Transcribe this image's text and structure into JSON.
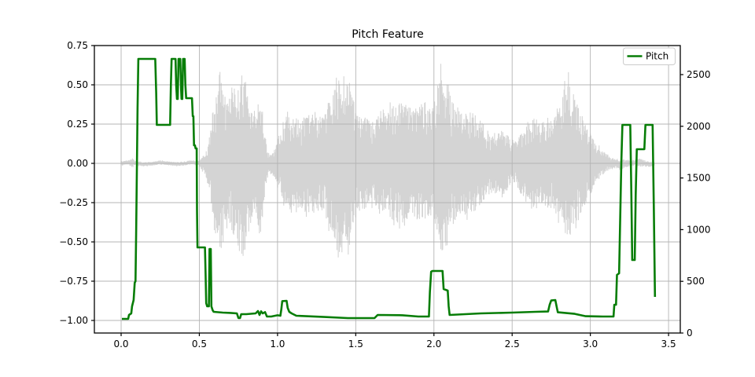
{
  "title": "Pitch Feature",
  "legend": {
    "label": "Pitch",
    "position": "upper right",
    "line_color": "#077d07"
  },
  "colors": {
    "background": "#ffffff",
    "pitch_line": "#077d07",
    "waveform": "#d4d4d4",
    "grid": "#b4b4b4",
    "axis_frame": "#000000",
    "legend_border": "#cccccc"
  },
  "axis_tick_labels": {
    "x": [
      "0.0",
      "0.5",
      "1.0",
      "1.5",
      "2.0",
      "2.5",
      "3.0",
      "3.5"
    ],
    "left": [
      "0.75",
      "0.50",
      "0.25",
      "0.00",
      "−0.25",
      "−0.50",
      "−0.75",
      "−1.00"
    ],
    "right": [
      "0",
      "500",
      "1000",
      "1500",
      "2000",
      "2500"
    ]
  },
  "chart_data": {
    "type": "line",
    "title": "Pitch Feature",
    "xlabel": "",
    "ylabel": "",
    "grid": true,
    "legend_position": "upper right",
    "xlim": [
      -0.171,
      3.575
    ],
    "ylim_left": [
      -1.08,
      0.75
    ],
    "ylim_right": [
      0,
      2781
    ],
    "xticks": [
      0.0,
      0.5,
      1.0,
      1.5,
      2.0,
      2.5,
      3.0,
      3.5
    ],
    "yticks_left": [
      0.75,
      0.5,
      0.25,
      0.0,
      -0.25,
      -0.5,
      -0.75,
      -1.0
    ],
    "yticks_right": [
      0,
      500,
      1000,
      1500,
      2000,
      2500
    ],
    "series": [
      {
        "name": "Pitch",
        "type": "line",
        "axis": "left",
        "color": "#077d07",
        "points": [
          [
            0.005,
            -0.99
          ],
          [
            0.045,
            -0.99
          ],
          [
            0.05,
            -0.965
          ],
          [
            0.065,
            -0.955
          ],
          [
            0.07,
            -0.91
          ],
          [
            0.08,
            -0.87
          ],
          [
            0.087,
            -0.76
          ],
          [
            0.092,
            -0.75
          ],
          [
            0.096,
            -0.45
          ],
          [
            0.1,
            -0.1
          ],
          [
            0.105,
            0.35
          ],
          [
            0.11,
            0.665
          ],
          [
            0.218,
            0.665
          ],
          [
            0.224,
            0.45
          ],
          [
            0.228,
            0.245
          ],
          [
            0.313,
            0.245
          ],
          [
            0.318,
            0.5
          ],
          [
            0.323,
            0.665
          ],
          [
            0.348,
            0.665
          ],
          [
            0.352,
            0.5
          ],
          [
            0.357,
            0.41
          ],
          [
            0.362,
            0.41
          ],
          [
            0.367,
            0.665
          ],
          [
            0.378,
            0.665
          ],
          [
            0.383,
            0.48
          ],
          [
            0.386,
            0.41
          ],
          [
            0.391,
            0.41
          ],
          [
            0.396,
            0.665
          ],
          [
            0.406,
            0.665
          ],
          [
            0.411,
            0.5
          ],
          [
            0.416,
            0.415
          ],
          [
            0.453,
            0.415
          ],
          [
            0.458,
            0.3
          ],
          [
            0.462,
            0.3
          ],
          [
            0.466,
            0.115
          ],
          [
            0.472,
            0.115
          ],
          [
            0.476,
            0.095
          ],
          [
            0.483,
            0.095
          ],
          [
            0.485,
            -0.3
          ],
          [
            0.488,
            -0.535
          ],
          [
            0.536,
            -0.535
          ],
          [
            0.54,
            -0.7
          ],
          [
            0.544,
            -0.89
          ],
          [
            0.55,
            -0.91
          ],
          [
            0.561,
            -0.91
          ],
          [
            0.565,
            -0.545
          ],
          [
            0.573,
            -0.545
          ],
          [
            0.577,
            -0.91
          ],
          [
            0.585,
            -0.935
          ],
          [
            0.592,
            -0.945
          ],
          [
            0.65,
            -0.95
          ],
          [
            0.7,
            -0.952
          ],
          [
            0.74,
            -0.955
          ],
          [
            0.75,
            -0.985
          ],
          [
            0.76,
            -0.985
          ],
          [
            0.768,
            -0.96
          ],
          [
            0.8,
            -0.96
          ],
          [
            0.86,
            -0.955
          ],
          [
            0.875,
            -0.94
          ],
          [
            0.885,
            -0.965
          ],
          [
            0.895,
            -0.942
          ],
          [
            0.905,
            -0.955
          ],
          [
            0.92,
            -0.947
          ],
          [
            0.932,
            -0.975
          ],
          [
            0.96,
            -0.975
          ],
          [
            1.0,
            -0.967
          ],
          [
            1.018,
            -0.97
          ],
          [
            1.024,
            -0.93
          ],
          [
            1.03,
            -0.877
          ],
          [
            1.058,
            -0.875
          ],
          [
            1.065,
            -0.92
          ],
          [
            1.075,
            -0.945
          ],
          [
            1.09,
            -0.955
          ],
          [
            1.12,
            -0.97
          ],
          [
            1.3,
            -0.978
          ],
          [
            1.45,
            -0.985
          ],
          [
            1.62,
            -0.985
          ],
          [
            1.64,
            -0.965
          ],
          [
            1.8,
            -0.967
          ],
          [
            1.9,
            -0.975
          ],
          [
            1.968,
            -0.975
          ],
          [
            1.974,
            -0.82
          ],
          [
            1.982,
            -0.69
          ],
          [
            1.99,
            -0.685
          ],
          [
            2.055,
            -0.685
          ],
          [
            2.062,
            -0.8
          ],
          [
            2.088,
            -0.81
          ],
          [
            2.094,
            -0.91
          ],
          [
            2.1,
            -0.965
          ],
          [
            2.3,
            -0.955
          ],
          [
            2.5,
            -0.95
          ],
          [
            2.65,
            -0.945
          ],
          [
            2.73,
            -0.943
          ],
          [
            2.74,
            -0.9
          ],
          [
            2.75,
            -0.873
          ],
          [
            2.776,
            -0.87
          ],
          [
            2.786,
            -0.92
          ],
          [
            2.792,
            -0.948
          ],
          [
            2.9,
            -0.958
          ],
          [
            2.97,
            -0.973
          ],
          [
            3.08,
            -0.975
          ],
          [
            3.148,
            -0.975
          ],
          [
            3.153,
            -0.9
          ],
          [
            3.164,
            -0.9
          ],
          [
            3.17,
            -0.71
          ],
          [
            3.184,
            -0.7
          ],
          [
            3.19,
            -0.4
          ],
          [
            3.198,
            0.0
          ],
          [
            3.205,
            0.245
          ],
          [
            3.255,
            0.245
          ],
          [
            3.262,
            -0.2
          ],
          [
            3.268,
            -0.615
          ],
          [
            3.284,
            -0.615
          ],
          [
            3.29,
            -0.2
          ],
          [
            3.297,
            0.09
          ],
          [
            3.345,
            0.09
          ],
          [
            3.352,
            0.245
          ],
          [
            3.398,
            0.245
          ],
          [
            3.406,
            -0.3
          ],
          [
            3.413,
            -0.85
          ]
        ]
      },
      {
        "name": "audio-waveform",
        "type": "audio-envelope",
        "axis": "left",
        "color": "#d4d4d4",
        "center": 0.0,
        "x_range": [
          0.0,
          3.41
        ],
        "envelope": [
          [
            0.0,
            0.013
          ],
          [
            0.05,
            0.014
          ],
          [
            0.065,
            0.028
          ],
          [
            0.075,
            0.03
          ],
          [
            0.085,
            0.015
          ],
          [
            0.15,
            0.012
          ],
          [
            0.3,
            0.012
          ],
          [
            0.45,
            0.012
          ],
          [
            0.5,
            0.014
          ],
          [
            0.52,
            0.05
          ],
          [
            0.535,
            0.06
          ],
          [
            0.55,
            0.12
          ],
          [
            0.57,
            0.22
          ],
          [
            0.59,
            0.4
          ],
          [
            0.61,
            0.52
          ],
          [
            0.63,
            0.62
          ],
          [
            0.65,
            0.55
          ],
          [
            0.67,
            0.45
          ],
          [
            0.7,
            0.42
          ],
          [
            0.72,
            0.48
          ],
          [
            0.75,
            0.55
          ],
          [
            0.78,
            0.62
          ],
          [
            0.8,
            0.52
          ],
          [
            0.83,
            0.38
          ],
          [
            0.86,
            0.3
          ],
          [
            0.885,
            0.48
          ],
          [
            0.9,
            0.4
          ],
          [
            0.92,
            0.18
          ],
          [
            0.94,
            0.08
          ],
          [
            0.96,
            0.06
          ],
          [
            0.98,
            0.09
          ],
          [
            1.0,
            0.15
          ],
          [
            1.03,
            0.25
          ],
          [
            1.06,
            0.33
          ],
          [
            1.09,
            0.3
          ],
          [
            1.12,
            0.32
          ],
          [
            1.15,
            0.28
          ],
          [
            1.18,
            0.33
          ],
          [
            1.21,
            0.3
          ],
          [
            1.24,
            0.33
          ],
          [
            1.27,
            0.3
          ],
          [
            1.3,
            0.33
          ],
          [
            1.33,
            0.4
          ],
          [
            1.36,
            0.48
          ],
          [
            1.39,
            0.62
          ],
          [
            1.42,
            0.55
          ],
          [
            1.45,
            0.6
          ],
          [
            1.48,
            0.42
          ],
          [
            1.51,
            0.32
          ],
          [
            1.54,
            0.28
          ],
          [
            1.57,
            0.32
          ],
          [
            1.6,
            0.25
          ],
          [
            1.63,
            0.3
          ],
          [
            1.66,
            0.35
          ],
          [
            1.69,
            0.3
          ],
          [
            1.72,
            0.35
          ],
          [
            1.75,
            0.4
          ],
          [
            1.78,
            0.42
          ],
          [
            1.81,
            0.4
          ],
          [
            1.84,
            0.38
          ],
          [
            1.87,
            0.35
          ],
          [
            1.9,
            0.38
          ],
          [
            1.93,
            0.4
          ],
          [
            1.96,
            0.38
          ],
          [
            1.99,
            0.35
          ],
          [
            2.02,
            0.48
          ],
          [
            2.05,
            0.62
          ],
          [
            2.08,
            0.55
          ],
          [
            2.11,
            0.42
          ],
          [
            2.14,
            0.35
          ],
          [
            2.17,
            0.33
          ],
          [
            2.2,
            0.33
          ],
          [
            2.23,
            0.33
          ],
          [
            2.26,
            0.32
          ],
          [
            2.29,
            0.28
          ],
          [
            2.32,
            0.25
          ],
          [
            2.35,
            0.2
          ],
          [
            2.38,
            0.18
          ],
          [
            2.41,
            0.2
          ],
          [
            2.44,
            0.22
          ],
          [
            2.47,
            0.18
          ],
          [
            2.5,
            0.13
          ],
          [
            2.53,
            0.15
          ],
          [
            2.56,
            0.2
          ],
          [
            2.59,
            0.27
          ],
          [
            2.62,
            0.3
          ],
          [
            2.65,
            0.28
          ],
          [
            2.68,
            0.25
          ],
          [
            2.71,
            0.27
          ],
          [
            2.74,
            0.28
          ],
          [
            2.77,
            0.3
          ],
          [
            2.8,
            0.4
          ],
          [
            2.83,
            0.47
          ],
          [
            2.86,
            0.52
          ],
          [
            2.89,
            0.47
          ],
          [
            2.92,
            0.4
          ],
          [
            2.95,
            0.3
          ],
          [
            2.98,
            0.22
          ],
          [
            3.01,
            0.18
          ],
          [
            3.04,
            0.12
          ],
          [
            3.07,
            0.08
          ],
          [
            3.1,
            0.06
          ],
          [
            3.13,
            0.04
          ],
          [
            3.16,
            0.03
          ],
          [
            3.19,
            0.035
          ],
          [
            3.22,
            0.028
          ],
          [
            3.25,
            0.02
          ],
          [
            3.28,
            0.02
          ],
          [
            3.31,
            0.025
          ],
          [
            3.34,
            0.022
          ],
          [
            3.37,
            0.016
          ],
          [
            3.405,
            0.013
          ]
        ]
      }
    ]
  }
}
